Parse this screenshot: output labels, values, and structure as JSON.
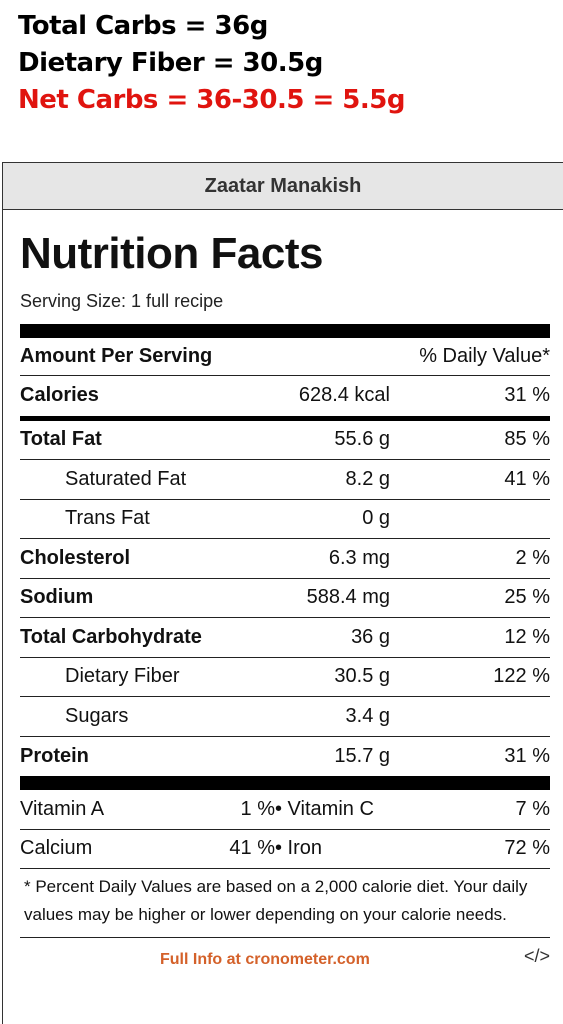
{
  "summary": {
    "total_carbs": "Total Carbs = 36g",
    "dietary_fiber": "Dietary Fiber = 30.5g",
    "net_carbs": "Net Carbs = 36-30.5 = 5.5g"
  },
  "card": {
    "recipe_title": "Zaatar Manakish",
    "heading": "Nutrition Facts",
    "serving_size": "Serving Size: 1 full recipe",
    "amount_header": "Amount Per Serving",
    "dv_header": "% Daily Value*",
    "rows": [
      {
        "name": "Calories",
        "amount": "628.4 kcal",
        "dv": "31 %"
      },
      {
        "name": "Total Fat",
        "amount": "55.6 g",
        "dv": "85 %"
      },
      {
        "name": "Saturated Fat",
        "amount": "8.2 g",
        "dv": "41 %"
      },
      {
        "name": "Trans Fat",
        "amount": "0 g",
        "dv": ""
      },
      {
        "name": "Cholesterol",
        "amount": "6.3 mg",
        "dv": "2 %"
      },
      {
        "name": "Sodium",
        "amount": "588.4 mg",
        "dv": "25 %"
      },
      {
        "name": "Total Carbohydrate",
        "amount": "36 g",
        "dv": "12 %"
      },
      {
        "name": "Dietary Fiber",
        "amount": "30.5 g",
        "dv": "122 %"
      },
      {
        "name": "Sugars",
        "amount": "3.4 g",
        "dv": ""
      },
      {
        "name": "Protein",
        "amount": "15.7 g",
        "dv": "31 %"
      }
    ],
    "vitamins": [
      {
        "left_name": "Vitamin A",
        "left_value": "1 %",
        "right_name": "• Vitamin C",
        "right_value": "7 %"
      },
      {
        "left_name": "Calcium",
        "left_value": "41 %",
        "right_name": "• Iron",
        "right_value": "72 %"
      }
    ],
    "footnote": "* Percent Daily Values are based on a 2,000 calorie diet. Your daily values may be higher or lower depending on your calorie needs.",
    "full_info_link": "Full Info at cronometer.com",
    "embed_code": "</>"
  },
  "colors": {
    "net_carbs": "#e0140f",
    "link": "#d4612a",
    "title_bar": "#e6e6e6"
  }
}
